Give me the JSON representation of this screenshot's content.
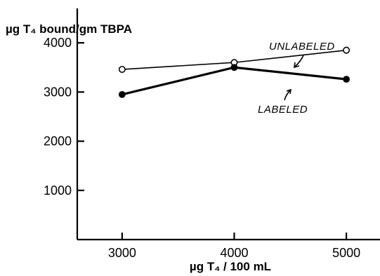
{
  "chart_data": {
    "type": "line",
    "title": "",
    "xlabel": "µg T₄ / 100 mL",
    "ylabel": "µg T₄ bound/gm TBPA",
    "x": [
      3000,
      4000,
      5000
    ],
    "x_ticks": [
      "3000",
      "4000",
      "5000"
    ],
    "y_ticks": [
      "1000",
      "2000",
      "3000",
      "4000"
    ],
    "xlim": [
      2600,
      5300
    ],
    "ylim": [
      0,
      4700
    ],
    "grid": false,
    "series": [
      {
        "name": "UNLABELED",
        "values": [
          3460,
          3600,
          3850
        ],
        "marker": "open-circle",
        "line": "thin",
        "color": "#000000"
      },
      {
        "name": "LABELED",
        "values": [
          2950,
          3500,
          3260
        ],
        "marker": "filled-circle",
        "line": "thick",
        "color": "#000000"
      }
    ]
  }
}
